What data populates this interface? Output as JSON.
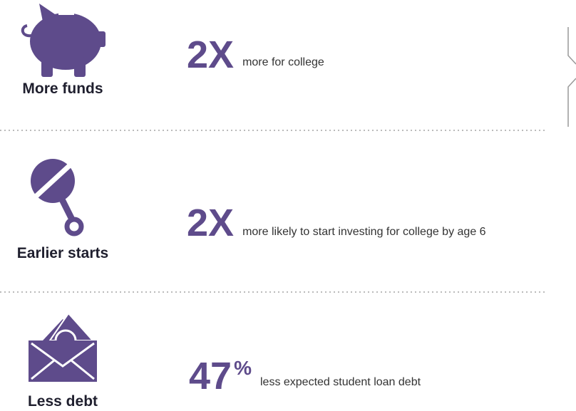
{
  "rows": [
    {
      "label": "More funds",
      "stat": "2X",
      "description": "more for college"
    },
    {
      "label": "Earlier starts",
      "stat": "2X",
      "description": "more likely to start investing for college by age 6"
    },
    {
      "label": "Less debt",
      "stat": "47",
      "unit": "%",
      "description": "less expected student loan debt"
    }
  ]
}
